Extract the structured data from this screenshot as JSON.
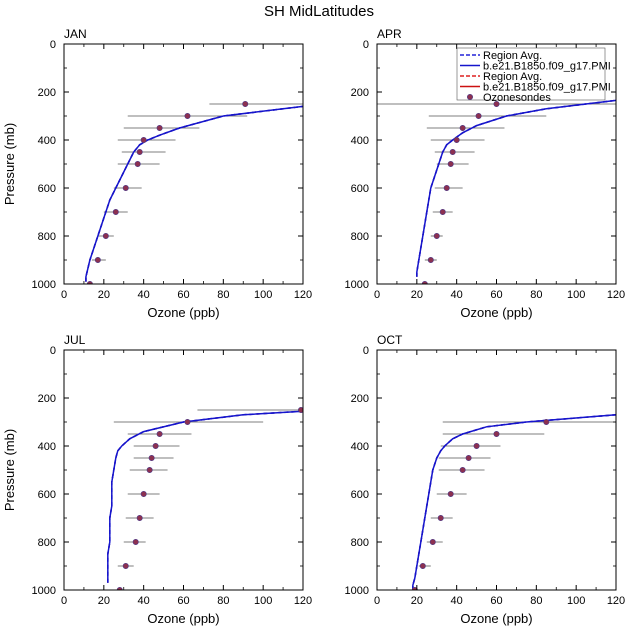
{
  "figure_title": "SH MidLatitudes",
  "colors": {
    "model_dashed": "#2323d8",
    "model_solid": "#1515cc",
    "obs_dashed": "#dd2020",
    "obs_solid": "#cc1010",
    "marker": "#8c3050",
    "marker_edge": "#4a3a8a",
    "errorbar": "#555555"
  },
  "legend": {
    "items": [
      {
        "label": "Region Avg.",
        "style": "dashed",
        "color": "#2323d8"
      },
      {
        "label": "b.e21.B1850.f09_g17.PMI",
        "style": "solid",
        "color": "#1515cc"
      },
      {
        "label": "Region Avg.",
        "style": "dashed",
        "color": "#dd2020"
      },
      {
        "label": "b.e21.B1850.f09_g17.PMI",
        "style": "solid",
        "color": "#cc1010"
      },
      {
        "label": "Ozonesondes",
        "style": "marker",
        "color": "#8c3050"
      }
    ]
  },
  "chart_data": [
    {
      "type": "line",
      "title": "JAN",
      "xlabel": "Ozone (ppb)",
      "ylabel": "Pressure (mb)",
      "xlim": [
        0,
        120
      ],
      "ylim": [
        1000,
        0
      ],
      "xticks": [
        0,
        20,
        40,
        60,
        80,
        100,
        120
      ],
      "yticks": [
        0,
        200,
        400,
        600,
        800,
        1000
      ],
      "show_ylabel": true,
      "show_legend": false,
      "model": {
        "pressure": [
          990,
          970,
          900,
          850,
          800,
          750,
          700,
          650,
          600,
          550,
          500,
          450,
          420,
          400,
          380,
          350,
          300,
          260
        ],
        "ozone": [
          11,
          11,
          13,
          15,
          17,
          19,
          21,
          23,
          26,
          29,
          32,
          35,
          38,
          42,
          48,
          58,
          80,
          120
        ]
      },
      "sondes": {
        "pressure": [
          250,
          300,
          350,
          400,
          450,
          500,
          600,
          700,
          800,
          900,
          1000
        ],
        "ozone": [
          91,
          62,
          48,
          40,
          38,
          37,
          31,
          26,
          21,
          17,
          13
        ],
        "err_lo": [
          73,
          32,
          30,
          27,
          29,
          27,
          25,
          20,
          17,
          14,
          11
        ],
        "err_hi": [
          120,
          92,
          68,
          56,
          51,
          48,
          39,
          32,
          25,
          21,
          16
        ]
      }
    },
    {
      "type": "line",
      "title": "APR",
      "xlabel": "Ozone (ppb)",
      "ylabel": "Pressure (mb)",
      "xlim": [
        0,
        120
      ],
      "ylim": [
        1000,
        0
      ],
      "xticks": [
        0,
        20,
        40,
        60,
        80,
        100,
        120
      ],
      "yticks": [
        0,
        200,
        400,
        600,
        800,
        1000
      ],
      "show_ylabel": false,
      "show_legend": true,
      "model": {
        "pressure": [
          970,
          950,
          900,
          850,
          800,
          750,
          700,
          650,
          600,
          550,
          500,
          450,
          420,
          400,
          370,
          340,
          300,
          270,
          235
        ],
        "ozone": [
          20,
          20,
          21,
          22,
          23,
          24,
          25,
          26,
          27,
          29,
          31,
          33,
          35,
          38,
          43,
          50,
          65,
          85,
          120
        ]
      },
      "sondes": {
        "pressure": [
          250,
          300,
          350,
          400,
          450,
          500,
          600,
          700,
          800,
          900,
          1000
        ],
        "ozone": [
          60,
          51,
          43,
          40,
          38,
          37,
          35,
          33,
          30,
          27,
          24
        ],
        "err_lo": [
          0,
          26,
          25,
          27,
          29,
          30,
          29,
          28,
          27,
          24,
          22
        ],
        "err_hi": [
          120,
          85,
          64,
          54,
          49,
          46,
          43,
          38,
          33,
          30,
          27
        ]
      }
    },
    {
      "type": "line",
      "title": "JUL",
      "xlabel": "Ozone (ppb)",
      "ylabel": "Pressure (mb)",
      "xlim": [
        0,
        120
      ],
      "ylim": [
        1000,
        0
      ],
      "xticks": [
        0,
        20,
        40,
        60,
        80,
        100,
        120
      ],
      "yticks": [
        0,
        200,
        400,
        600,
        800,
        1000
      ],
      "show_ylabel": true,
      "show_legend": false,
      "model": {
        "pressure": [
          970,
          950,
          900,
          850,
          800,
          750,
          700,
          650,
          600,
          550,
          500,
          450,
          420,
          400,
          370,
          340,
          300,
          270,
          255
        ],
        "ozone": [
          22,
          22,
          22,
          22,
          23,
          23,
          23,
          24,
          24,
          24,
          25,
          26,
          27,
          29,
          33,
          40,
          60,
          90,
          120
        ]
      },
      "sondes": {
        "pressure": [
          250,
          300,
          350,
          400,
          450,
          500,
          600,
          700,
          800,
          900,
          1000
        ],
        "ozone": [
          119,
          62,
          48,
          46,
          44,
          43,
          40,
          38,
          36,
          31,
          28
        ],
        "err_lo": [
          67,
          25,
          32,
          35,
          35,
          33,
          32,
          31,
          30,
          27,
          25
        ],
        "err_hi": [
          120,
          100,
          64,
          58,
          55,
          52,
          48,
          45,
          41,
          35,
          31
        ]
      }
    },
    {
      "type": "line",
      "title": "OCT",
      "xlabel": "Ozone (ppb)",
      "ylabel": "Pressure (mb)",
      "xlim": [
        0,
        120
      ],
      "ylim": [
        1000,
        0
      ],
      "xticks": [
        0,
        20,
        40,
        60,
        80,
        100,
        120
      ],
      "yticks": [
        0,
        200,
        400,
        600,
        800,
        1000
      ],
      "show_ylabel": false,
      "show_legend": false,
      "model": {
        "pressure": [
          1000,
          980,
          950,
          900,
          850,
          800,
          750,
          700,
          650,
          600,
          550,
          500,
          450,
          420,
          400,
          370,
          350,
          320,
          300,
          270
        ],
        "ozone": [
          18,
          18,
          19,
          20,
          21,
          22,
          23,
          24,
          25,
          26,
          27,
          28,
          30,
          32,
          34,
          38,
          43,
          55,
          75,
          120
        ]
      },
      "sondes": {
        "pressure": [
          300,
          350,
          400,
          450,
          500,
          600,
          700,
          800,
          900,
          1000
        ],
        "ozone": [
          85,
          60,
          50,
          46,
          43,
          37,
          32,
          28,
          23,
          19
        ],
        "err_lo": [
          33,
          33,
          32,
          31,
          31,
          30,
          27,
          25,
          21,
          17
        ],
        "err_hi": [
          120,
          84,
          62,
          57,
          54,
          45,
          38,
          33,
          27,
          21
        ]
      }
    }
  ]
}
